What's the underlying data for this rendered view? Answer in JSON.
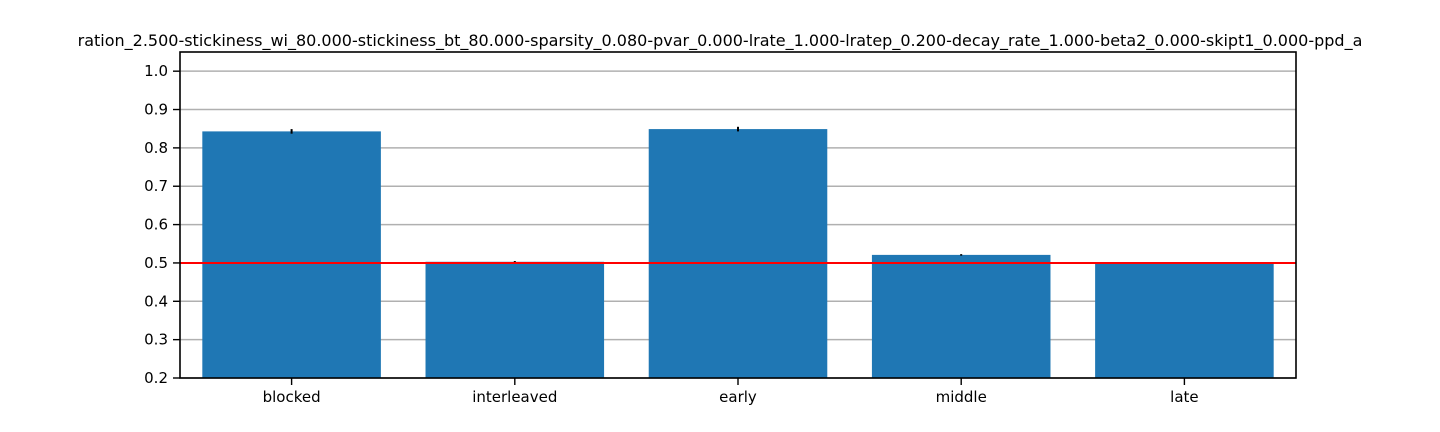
{
  "chart_data": {
    "type": "bar",
    "title": "ration_2.500-stickiness_wi_80.000-stickiness_bt_80.000-sparsity_0.080-pvar_0.000-lrate_1.000-lratep_0.200-decay_rate_1.000-beta2_0.000-skipt1_0.000-ppd_a",
    "xlabel": "",
    "ylabel": "",
    "categories": [
      "blocked",
      "interleaved",
      "early",
      "middle",
      "late"
    ],
    "values": [
      0.843,
      0.503,
      0.849,
      0.521,
      0.5
    ],
    "errors": [
      0.006,
      0.002,
      0.006,
      0.002,
      0.001
    ],
    "ylim": [
      0.2,
      1.05
    ],
    "yticks": [
      0.2,
      0.3,
      0.4,
      0.5,
      0.6,
      0.7,
      0.8,
      0.9,
      1.0
    ],
    "ytick_labels": [
      "0.2",
      "0.3",
      "0.4",
      "0.5",
      "0.6",
      "0.7",
      "0.8",
      "0.9",
      "1.0"
    ],
    "reference_line": 0.5,
    "grid": "horizontal",
    "colors": {
      "bar": "#1f77b4",
      "reference_line": "#ff0000",
      "grid": "#b0b0b0",
      "error_bar": "#000000",
      "axes": "#000000"
    }
  }
}
